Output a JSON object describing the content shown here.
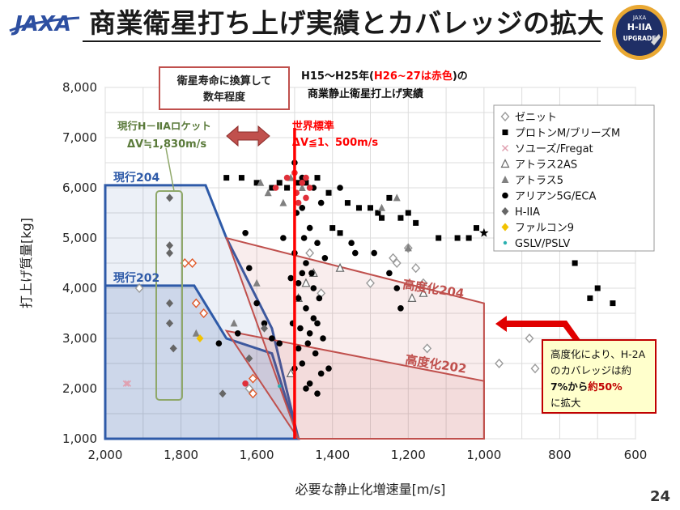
{
  "slide": {
    "logo_text": "JAXA",
    "title": "商業衛星打ち上げ実績とカバレッジの拡大",
    "badge": {
      "top": "JAXA",
      "middle": "H-IIA",
      "bottom": "UPGRADE"
    },
    "page_number": "24"
  },
  "colors": {
    "current_region": "#2e5aa8",
    "enhanced_region": "#c0504d",
    "world_standard": "#ff0000",
    "accent_green": "#5a7a3a",
    "callout_border": "#c00000",
    "callout_fill": "#ffffcc"
  },
  "chart_data": {
    "type": "scatter",
    "xlabel": "必要な静止化増速量[m/s]",
    "ylabel": "打上げ質量[kg]",
    "xlim": [
      2000,
      600
    ],
    "ylim": [
      1000,
      8000
    ],
    "x_ticks": [
      "2,000",
      "1,800",
      "1,600",
      "1,400",
      "1,200",
      "1,000",
      "800",
      "600"
    ],
    "y_ticks": [
      "1,000",
      "2,000",
      "3,000",
      "4,000",
      "5,000",
      "6,000",
      "7,000",
      "8,000"
    ],
    "grid": true,
    "legend_position": "top-right",
    "series": [
      {
        "name": "ゼニット",
        "marker": "diamond-open",
        "color": "#9a9a9a",
        "points": [
          [
            1910,
            4000
          ],
          [
            1620,
            2000
          ],
          [
            1460,
            4700
          ],
          [
            1430,
            3900
          ],
          [
            1300,
            4100
          ],
          [
            1240,
            4600
          ],
          [
            1230,
            4500
          ],
          [
            1200,
            4800
          ],
          [
            1180,
            4400
          ],
          [
            1160,
            4100
          ],
          [
            1150,
            2800
          ],
          [
            960,
            2500
          ],
          [
            880,
            3000
          ],
          [
            865,
            2400
          ],
          [
            820,
            2300
          ]
        ]
      },
      {
        "name": "プロトンM/ブリーズM",
        "marker": "square",
        "color": "#000000",
        "points": [
          [
            1680,
            6200
          ],
          [
            1640,
            6200
          ],
          [
            1600,
            6100
          ],
          [
            1560,
            6000
          ],
          [
            1540,
            6100
          ],
          [
            1520,
            6000
          ],
          [
            1490,
            6100
          ],
          [
            1470,
            6100
          ],
          [
            1440,
            6200
          ],
          [
            1410,
            5900
          ],
          [
            1400,
            5200
          ],
          [
            1380,
            5100
          ],
          [
            1360,
            5700
          ],
          [
            1330,
            5600
          ],
          [
            1300,
            5600
          ],
          [
            1280,
            5500
          ],
          [
            1270,
            5400
          ],
          [
            1250,
            5800
          ],
          [
            1220,
            5400
          ],
          [
            1200,
            5500
          ],
          [
            1180,
            5300
          ],
          [
            1120,
            5000
          ],
          [
            1070,
            5000
          ],
          [
            1040,
            5000
          ],
          [
            1020,
            5200
          ],
          [
            960,
            5000
          ],
          [
            930,
            4900
          ],
          [
            900,
            4800
          ],
          [
            880,
            4900
          ],
          [
            760,
            4500
          ],
          [
            720,
            3800
          ],
          [
            700,
            4000
          ],
          [
            660,
            3700
          ]
        ]
      },
      {
        "name": "ソユーズ/Fregat",
        "marker": "x",
        "color": "#e0a0b0",
        "points": [
          [
            1945,
            2100
          ],
          [
            1940,
            2100
          ]
        ]
      },
      {
        "name": "アトラス2AS",
        "marker": "triangle-open",
        "color": "#666666",
        "points": [
          [
            1510,
            2300
          ],
          [
            1470,
            4100
          ],
          [
            1450,
            4300
          ],
          [
            1380,
            4400
          ],
          [
            1190,
            3800
          ],
          [
            1160,
            3900
          ],
          [
            1490,
            3800
          ]
        ]
      },
      {
        "name": "アトラス5",
        "marker": "triangle",
        "color": "#808080",
        "points": [
          [
            1760,
            3100
          ],
          [
            1660,
            3300
          ],
          [
            1600,
            4100
          ],
          [
            1590,
            6100
          ],
          [
            1570,
            5900
          ],
          [
            1530,
            5700
          ],
          [
            1510,
            6200
          ],
          [
            1480,
            6000
          ],
          [
            1270,
            5600
          ],
          [
            1230,
            5800
          ],
          [
            1200,
            4800
          ]
        ]
      },
      {
        "name": "アリアン5G/ECA",
        "marker": "circle",
        "color": "#000000",
        "points": [
          [
            1700,
            2900
          ],
          [
            1650,
            3100
          ],
          [
            1630,
            5100
          ],
          [
            1620,
            4400
          ],
          [
            1600,
            3700
          ],
          [
            1580,
            3300
          ],
          [
            1560,
            3000
          ],
          [
            1540,
            2900
          ],
          [
            1530,
            5000
          ],
          [
            1510,
            4200
          ],
          [
            1505,
            3300
          ],
          [
            1500,
            2400
          ],
          [
            1500,
            6500
          ],
          [
            1495,
            5500
          ],
          [
            1490,
            4100
          ],
          [
            1490,
            3800
          ],
          [
            1485,
            3200
          ],
          [
            1480,
            2500
          ],
          [
            1480,
            6200
          ],
          [
            1475,
            5000
          ],
          [
            1470,
            4500
          ],
          [
            1470,
            3600
          ],
          [
            1465,
            2900
          ],
          [
            1460,
            2100
          ],
          [
            1460,
            5200
          ],
          [
            1455,
            4300
          ],
          [
            1450,
            3400
          ],
          [
            1450,
            6000
          ],
          [
            1445,
            2700
          ],
          [
            1440,
            1900
          ],
          [
            1440,
            4900
          ],
          [
            1435,
            3800
          ],
          [
            1430,
            5700
          ],
          [
            1425,
            3000
          ],
          [
            1420,
            4600
          ],
          [
            1410,
            2400
          ],
          [
            1480,
            5600
          ],
          [
            1470,
            2000
          ],
          [
            1460,
            3100
          ],
          [
            1450,
            4000
          ],
          [
            1440,
            3300
          ],
          [
            1430,
            2300
          ],
          [
            1500,
            4700
          ],
          [
            1490,
            2800
          ],
          [
            1480,
            4300
          ],
          [
            1380,
            6000
          ],
          [
            1350,
            4900
          ],
          [
            1340,
            4700
          ],
          [
            1290,
            4700
          ],
          [
            1250,
            4300
          ],
          [
            1230,
            4000
          ],
          [
            1220,
            3600
          ]
        ]
      },
      {
        "name": "H-IIA",
        "marker": "diamond",
        "color": "#666666",
        "points": [
          [
            1830,
            5800
          ],
          [
            1830,
            4850
          ],
          [
            1830,
            4700
          ],
          [
            1830,
            3700
          ],
          [
            1830,
            3300
          ],
          [
            1820,
            2800
          ],
          [
            1690,
            1900
          ],
          [
            1620,
            2600
          ],
          [
            1580,
            3200
          ],
          [
            1610,
            1900
          ]
        ]
      },
      {
        "name": "ファルコン9",
        "marker": "diamond",
        "color": "#f2c200",
        "points": [
          [
            1750,
            3000
          ]
        ]
      },
      {
        "name": "GSLV/PSLV",
        "marker": "dot",
        "color": "#2ab0b0",
        "points": [
          [
            1540,
            2050
          ]
        ]
      },
      {
        "name": "",
        "marker": "diamond-open",
        "color": "#e05a2a",
        "points": [
          [
            1790,
            4500
          ],
          [
            1770,
            4500
          ],
          [
            1760,
            3700
          ],
          [
            1740,
            3500
          ],
          [
            1610,
            2200
          ],
          [
            1610,
            1900
          ]
        ]
      },
      {
        "name": "",
        "marker": "circle",
        "color": "#e0303a",
        "points": [
          [
            1550,
            6000
          ],
          [
            1520,
            6200
          ],
          [
            1500,
            6300
          ],
          [
            1495,
            5900
          ],
          [
            1490,
            5700
          ],
          [
            1480,
            6100
          ],
          [
            1470,
            5800
          ],
          [
            1460,
            6000
          ],
          [
            1470,
            6200
          ],
          [
            1630,
            2100
          ]
        ]
      },
      {
        "name": "",
        "marker": "star",
        "color": "#000000",
        "points": [
          [
            1000,
            5100
          ]
        ]
      }
    ],
    "regions": [
      {
        "name": "現行204",
        "label": "現行204",
        "kind": "current",
        "polygon": [
          [
            2000,
            1000
          ],
          [
            2000,
            6050
          ],
          [
            1735,
            6050
          ],
          [
            1680,
            5000
          ],
          [
            1560,
            3200
          ],
          [
            1490,
            1000
          ]
        ]
      },
      {
        "name": "現行202",
        "label": "現行202",
        "kind": "current",
        "polygon": [
          [
            2000,
            1000
          ],
          [
            2000,
            4050
          ],
          [
            1765,
            4050
          ],
          [
            1680,
            3000
          ],
          [
            1560,
            2700
          ],
          [
            1490,
            1000
          ]
        ]
      },
      {
        "name": "高度化204",
        "label": "高度化204",
        "kind": "enhanced",
        "polygon": [
          [
            1680,
            5000
          ],
          [
            1490,
            1000
          ],
          [
            1000,
            1000
          ],
          [
            1000,
            3700
          ]
        ]
      },
      {
        "name": "高度化202",
        "label": "高度化202",
        "kind": "enhanced",
        "polygon": [
          [
            1680,
            3150
          ],
          [
            1490,
            1000
          ],
          [
            1000,
            1000
          ],
          [
            1000,
            2150
          ]
        ]
      }
    ],
    "reference_lines": [
      {
        "label": "世界標準",
        "sublabel": "ΔV≦1、500m/s",
        "x": 1500
      }
    ],
    "annotations": {
      "satellite_life_box": [
        "衛星寿命に換算して",
        "数年程度"
      ],
      "period_line1": [
        "H15～H25年(",
        "H26~27は赤色",
        ")の"
      ],
      "period_line2": "商業静止衛星打上げ実績",
      "current_rocket_line1": "現行H－ⅡAロケット",
      "current_rocket_line2": "ΔV≒1,830m/s",
      "callout": [
        "高度化により、H-2A",
        "のカバレッジは約",
        "7%から",
        "約50%",
        "に拡大"
      ]
    }
  }
}
